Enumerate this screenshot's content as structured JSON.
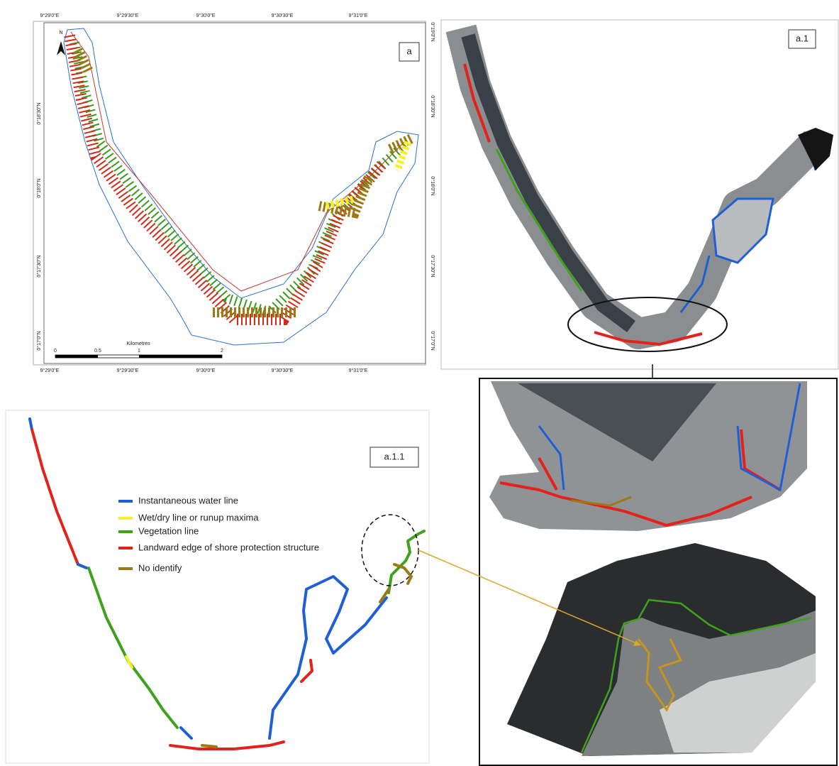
{
  "panel_a": {
    "label": "a",
    "north": "N",
    "top_ticks": [
      "9°29'0\"E",
      "9°29'30\"E",
      "9°30'0\"E",
      "9°30'30\"E",
      "9°31'0\"E"
    ],
    "bottom_ticks": [
      "9°29'0\"E",
      "9°29'30\"E",
      "9°30'0\"E",
      "9°30'30\"E",
      "9°31'0\"E"
    ],
    "left_ticks": [
      "0°18'30\"N",
      "0°18'0\"N",
      "0°17'30\"N",
      "0°17'0\"N"
    ],
    "right_ticks": [
      "0°19'0\"N",
      "0°18'30\"N",
      "0°18'0\"N",
      "0°17'30\"N",
      "0°17'0\"N"
    ],
    "scale": {
      "title": "Kilometres",
      "labels": [
        "0",
        "0.5",
        "1",
        "2"
      ]
    }
  },
  "panel_a1": {
    "label": "a.1"
  },
  "panel_a11": {
    "label": "a.1.1",
    "legend": [
      {
        "label": "Instantaneous water line",
        "color": "#1f5fd6"
      },
      {
        "label": "Wet/dry line or runup maxima",
        "color": "#f5f02a"
      },
      {
        "label": "Vegetation line",
        "color": "#3ea21c"
      },
      {
        "label": "Landward edge of shore protection structure",
        "color": "#e3221c"
      },
      {
        "label": "No identify",
        "color": "#9c7a12"
      }
    ]
  }
}
